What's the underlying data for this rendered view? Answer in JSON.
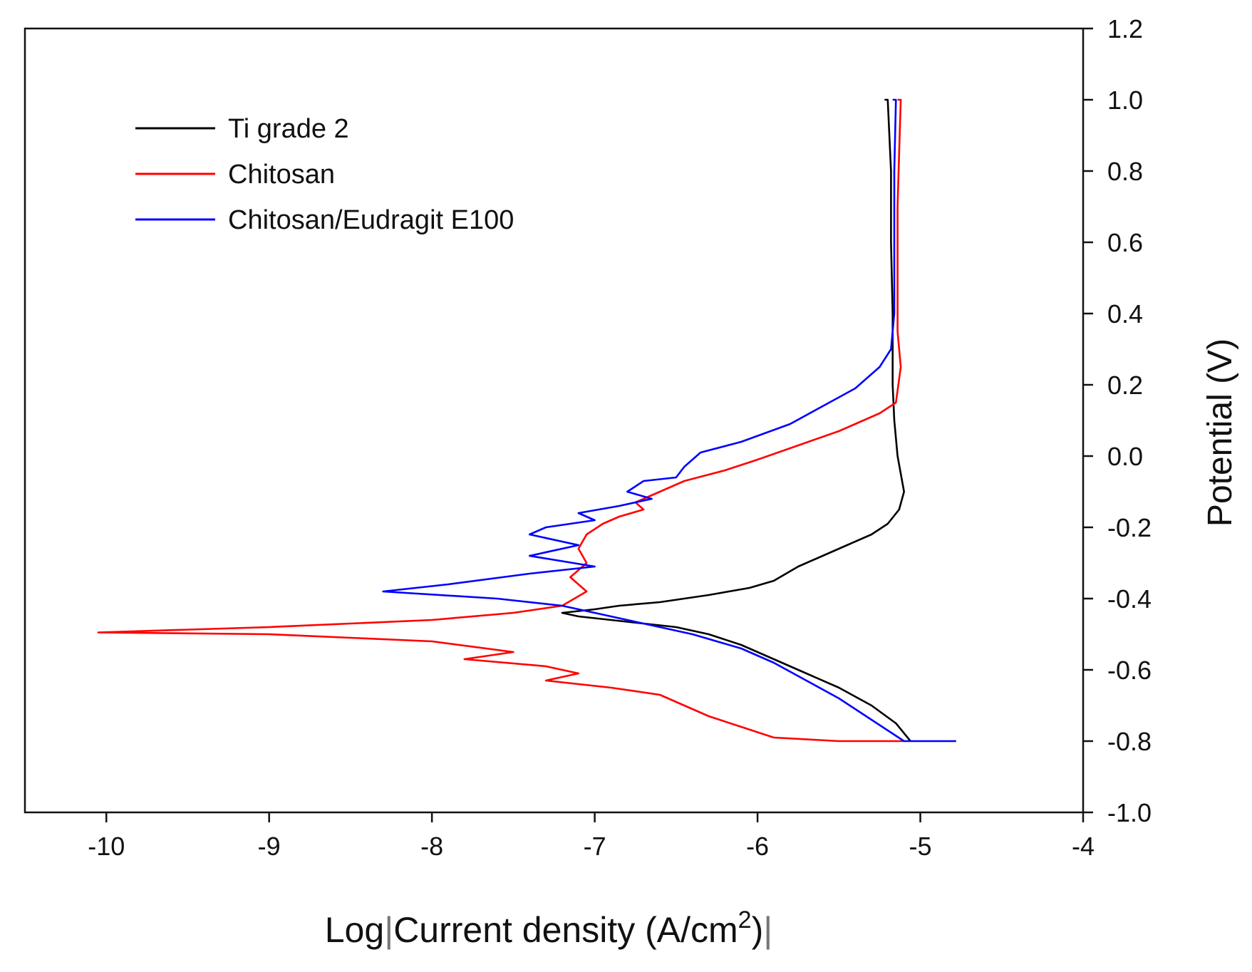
{
  "chart_data": {
    "type": "line",
    "title": "",
    "xlabel": {
      "prefix": "Log",
      "main": "Current density (A/cm",
      "sup": "2",
      "suffix": ")"
    },
    "ylabel": "Potential (V)",
    "xlim": [
      -10.5,
      -4
    ],
    "ylim": [
      -1.0,
      1.2
    ],
    "x_ticks": [
      -10,
      -9,
      -8,
      -7,
      -6,
      -5,
      -4
    ],
    "x_tick_labels": [
      "-10",
      "-9",
      "-8",
      "-7",
      "-6",
      "-5",
      "-4"
    ],
    "y_ticks": [
      -1.0,
      -0.8,
      -0.6,
      -0.4,
      -0.2,
      0.0,
      0.2,
      0.4,
      0.6,
      0.8,
      1.0,
      1.2
    ],
    "y_tick_labels": [
      "-1.0",
      "-0.8",
      "-0.6",
      "-0.4",
      "-0.2",
      "0.0",
      "0.2",
      "0.4",
      "0.6",
      "0.8",
      "1.0",
      "1.2"
    ],
    "y_axis_side": "right",
    "grid": false,
    "legend_position": "top-left",
    "series": [
      {
        "name": "Ti grade 2",
        "color": "#000000",
        "points": [
          [
            -5.22,
            1.0
          ],
          [
            -5.2,
            1.0
          ],
          [
            -5.19,
            0.9
          ],
          [
            -5.18,
            0.8
          ],
          [
            -5.18,
            0.6
          ],
          [
            -5.17,
            0.4
          ],
          [
            -5.17,
            0.2
          ],
          [
            -5.16,
            0.1
          ],
          [
            -5.14,
            0.0
          ],
          [
            -5.1,
            -0.1
          ],
          [
            -5.13,
            -0.15
          ],
          [
            -5.2,
            -0.19
          ],
          [
            -5.3,
            -0.22
          ],
          [
            -5.45,
            -0.25
          ],
          [
            -5.6,
            -0.28
          ],
          [
            -5.75,
            -0.31
          ],
          [
            -5.9,
            -0.35
          ],
          [
            -6.05,
            -0.37
          ],
          [
            -6.3,
            -0.39
          ],
          [
            -6.6,
            -0.41
          ],
          [
            -6.85,
            -0.42
          ],
          [
            -7.0,
            -0.43
          ],
          [
            -7.2,
            -0.44
          ],
          [
            -7.1,
            -0.45
          ],
          [
            -6.9,
            -0.46
          ],
          [
            -6.7,
            -0.47
          ],
          [
            -6.5,
            -0.48
          ],
          [
            -6.3,
            -0.5
          ],
          [
            -6.1,
            -0.53
          ],
          [
            -5.9,
            -0.57
          ],
          [
            -5.7,
            -0.61
          ],
          [
            -5.5,
            -0.65
          ],
          [
            -5.3,
            -0.7
          ],
          [
            -5.15,
            -0.75
          ],
          [
            -5.06,
            -0.8
          ]
        ]
      },
      {
        "name": "Chitosan",
        "color": "#ff0000",
        "points": [
          [
            -5.14,
            1.0
          ],
          [
            -5.12,
            1.0
          ],
          [
            -5.13,
            0.85
          ],
          [
            -5.14,
            0.7
          ],
          [
            -5.14,
            0.5
          ],
          [
            -5.14,
            0.35
          ],
          [
            -5.12,
            0.25
          ],
          [
            -5.15,
            0.15
          ],
          [
            -5.25,
            0.12
          ],
          [
            -5.5,
            0.07
          ],
          [
            -5.75,
            0.03
          ],
          [
            -6.0,
            -0.01
          ],
          [
            -6.2,
            -0.04
          ],
          [
            -6.45,
            -0.07
          ],
          [
            -6.6,
            -0.1
          ],
          [
            -6.75,
            -0.13
          ],
          [
            -6.7,
            -0.15
          ],
          [
            -6.85,
            -0.17
          ],
          [
            -6.95,
            -0.19
          ],
          [
            -7.05,
            -0.22
          ],
          [
            -7.1,
            -0.26
          ],
          [
            -7.05,
            -0.3
          ],
          [
            -7.15,
            -0.34
          ],
          [
            -7.05,
            -0.38
          ],
          [
            -7.2,
            -0.42
          ],
          [
            -7.5,
            -0.44
          ],
          [
            -8.0,
            -0.46
          ],
          [
            -9.0,
            -0.48
          ],
          [
            -10.05,
            -0.495
          ],
          [
            -9.0,
            -0.5
          ],
          [
            -8.0,
            -0.52
          ],
          [
            -7.5,
            -0.55
          ],
          [
            -7.8,
            -0.57
          ],
          [
            -7.3,
            -0.59
          ],
          [
            -7.1,
            -0.61
          ],
          [
            -7.3,
            -0.63
          ],
          [
            -6.9,
            -0.65
          ],
          [
            -6.6,
            -0.67
          ],
          [
            -6.45,
            -0.7
          ],
          [
            -6.3,
            -0.73
          ],
          [
            -6.1,
            -0.76
          ],
          [
            -5.9,
            -0.79
          ],
          [
            -5.5,
            -0.8
          ],
          [
            -5.1,
            -0.8
          ]
        ]
      },
      {
        "name": "Chitosan/Eudragit E100",
        "color": "#0000ff",
        "points": [
          [
            -5.17,
            1.0
          ],
          [
            -5.15,
            1.0
          ],
          [
            -5.16,
            0.8
          ],
          [
            -5.16,
            0.6
          ],
          [
            -5.16,
            0.4
          ],
          [
            -5.18,
            0.3
          ],
          [
            -5.25,
            0.25
          ],
          [
            -5.4,
            0.19
          ],
          [
            -5.6,
            0.14
          ],
          [
            -5.8,
            0.09
          ],
          [
            -6.1,
            0.04
          ],
          [
            -6.35,
            0.01
          ],
          [
            -6.45,
            -0.03
          ],
          [
            -6.5,
            -0.06
          ],
          [
            -6.7,
            -0.07
          ],
          [
            -6.8,
            -0.1
          ],
          [
            -6.65,
            -0.12
          ],
          [
            -6.85,
            -0.14
          ],
          [
            -7.1,
            -0.16
          ],
          [
            -7.0,
            -0.18
          ],
          [
            -7.3,
            -0.2
          ],
          [
            -7.4,
            -0.22
          ],
          [
            -7.1,
            -0.25
          ],
          [
            -7.4,
            -0.28
          ],
          [
            -7.0,
            -0.31
          ],
          [
            -7.4,
            -0.33
          ],
          [
            -7.9,
            -0.36
          ],
          [
            -8.3,
            -0.38
          ],
          [
            -7.6,
            -0.4
          ],
          [
            -7.2,
            -0.42
          ],
          [
            -7.0,
            -0.44
          ],
          [
            -6.8,
            -0.46
          ],
          [
            -6.6,
            -0.48
          ],
          [
            -6.4,
            -0.5
          ],
          [
            -6.1,
            -0.54
          ],
          [
            -5.9,
            -0.58
          ],
          [
            -5.7,
            -0.63
          ],
          [
            -5.5,
            -0.68
          ],
          [
            -5.3,
            -0.74
          ],
          [
            -5.1,
            -0.8
          ],
          [
            -4.78,
            -0.8
          ]
        ]
      }
    ]
  }
}
